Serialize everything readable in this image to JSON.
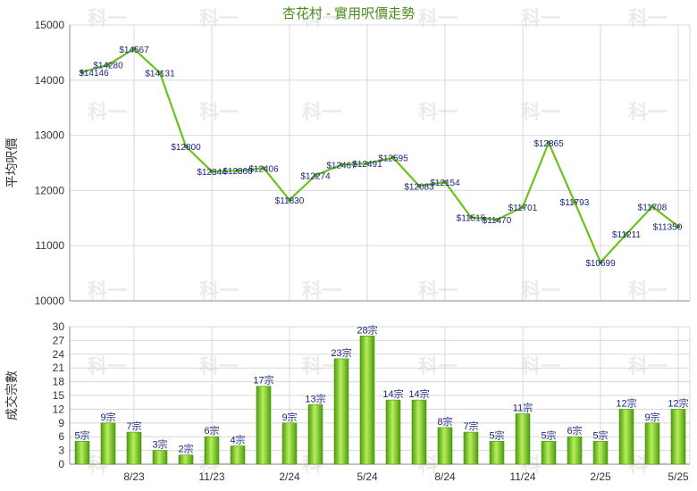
{
  "chart_data": [
    {
      "type": "line",
      "title": "杏花村 - 實用呎價走勢",
      "ylabel": "平均呎價",
      "ylim": [
        10000,
        15000
      ],
      "yticks": [
        10000,
        11000,
        12000,
        13000,
        14000,
        15000
      ],
      "grid": true,
      "series": [
        {
          "color": "#6cc21b",
          "values": [
            14146,
            14280,
            14567,
            14131,
            12800,
            12344,
            12360,
            12406,
            11830,
            12274,
            12467,
            12491,
            12595,
            12083,
            12154,
            11515,
            11470,
            11701,
            12865,
            11793,
            10699,
            11211,
            11708,
            11350
          ],
          "labels": [
            "$14146",
            "$14280",
            "$14567",
            "$14131",
            "$12800",
            "$12344",
            "$12360",
            "$12406",
            "$11830",
            "$12274",
            "$12467",
            "$12491",
            "$12595",
            "$12083",
            "$12154",
            "$11515",
            "$11470",
            "$11701",
            "$12865",
            "$11793",
            "$10699",
            "$11211",
            "$11708",
            "$11350"
          ]
        }
      ]
    },
    {
      "type": "bar",
      "ylabel": "成交宗數",
      "ylim": [
        0,
        30
      ],
      "yticks": [
        0,
        3,
        6,
        9,
        12,
        15,
        18,
        21,
        24,
        27,
        30
      ],
      "grid": true,
      "x_ticks": [
        {
          "label": "8/23",
          "index": 2
        },
        {
          "label": "11/23",
          "index": 5
        },
        {
          "label": "2/24",
          "index": 8
        },
        {
          "label": "5/24",
          "index": 11
        },
        {
          "label": "8/24",
          "index": 14
        },
        {
          "label": "11/24",
          "index": 17
        },
        {
          "label": "2/25",
          "index": 20
        },
        {
          "label": "5/25",
          "index": 23
        }
      ],
      "series": [
        {
          "color": "#6cc21b",
          "values": [
            5,
            9,
            7,
            3,
            2,
            6,
            4,
            17,
            9,
            13,
            23,
            28,
            14,
            14,
            8,
            7,
            5,
            11,
            5,
            6,
            5,
            12,
            9,
            12
          ],
          "labels": [
            "5宗",
            "9宗",
            "7宗",
            "3宗",
            "2宗",
            "6宗",
            "4宗",
            "17宗",
            "9宗",
            "13宗",
            "23宗",
            "28宗",
            "14宗",
            "14宗",
            "8宗",
            "7宗",
            "5宗",
            "11宗",
            "5宗",
            "6宗",
            "5宗",
            "12宗",
            "9宗",
            "12宗"
          ]
        }
      ]
    }
  ],
  "watermark": "科一"
}
